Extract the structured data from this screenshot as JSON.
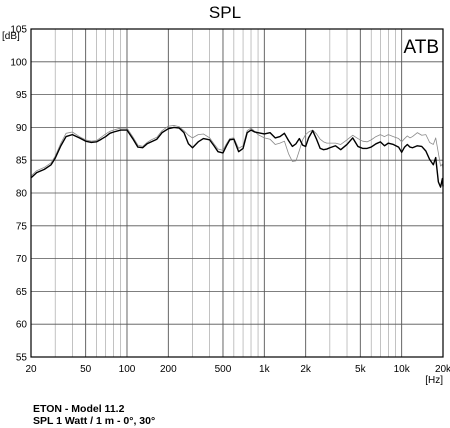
{
  "chart_data": {
    "type": "line",
    "title": "SPL",
    "ylabel": "[dB]",
    "xlabel": "[Hz]",
    "x_scale": "log",
    "xlim": [
      20,
      20000
    ],
    "ylim": [
      55,
      105
    ],
    "grid": true,
    "annotation": "ATB",
    "x_ticks": [
      {
        "value": 20,
        "label": "20"
      },
      {
        "value": 50,
        "label": "50"
      },
      {
        "value": 100,
        "label": "100"
      },
      {
        "value": 200,
        "label": "200"
      },
      {
        "value": 500,
        "label": "500"
      },
      {
        "value": 1000,
        "label": "1k"
      },
      {
        "value": 2000,
        "label": "2k"
      },
      {
        "value": 5000,
        "label": "5k"
      },
      {
        "value": 10000,
        "label": "10k"
      },
      {
        "value": 20000,
        "label": "20k"
      }
    ],
    "y_ticks": [
      55,
      60,
      65,
      70,
      75,
      80,
      85,
      90,
      95,
      100,
      105
    ],
    "series": [
      {
        "color": "#000000",
        "points": [
          [
            20,
            82.3
          ],
          [
            22,
            83.1
          ],
          [
            25,
            83.6
          ],
          [
            28,
            84.3
          ],
          [
            30,
            85.3
          ],
          [
            33,
            87.2
          ],
          [
            36,
            88.6
          ],
          [
            40,
            88.9
          ],
          [
            45,
            88.4
          ],
          [
            50,
            87.9
          ],
          [
            55,
            87.7
          ],
          [
            60,
            87.8
          ],
          [
            65,
            88.2
          ],
          [
            70,
            88.6
          ],
          [
            75,
            89.1
          ],
          [
            80,
            89.3
          ],
          [
            90,
            89.6
          ],
          [
            100,
            89.6
          ],
          [
            110,
            88.3
          ],
          [
            120,
            87.0
          ],
          [
            130,
            86.9
          ],
          [
            140,
            87.5
          ],
          [
            150,
            87.8
          ],
          [
            165,
            88.2
          ],
          [
            180,
            89.2
          ],
          [
            200,
            89.8
          ],
          [
            220,
            90.0
          ],
          [
            240,
            89.9
          ],
          [
            260,
            89.2
          ],
          [
            280,
            87.5
          ],
          [
            300,
            86.9
          ],
          [
            330,
            87.8
          ],
          [
            360,
            88.3
          ],
          [
            400,
            88.1
          ],
          [
            430,
            87.2
          ],
          [
            460,
            86.3
          ],
          [
            500,
            86.1
          ],
          [
            530,
            87.2
          ],
          [
            560,
            88.1
          ],
          [
            600,
            88.2
          ],
          [
            650,
            86.3
          ],
          [
            700,
            86.8
          ],
          [
            750,
            89.2
          ],
          [
            800,
            89.6
          ],
          [
            850,
            89.3
          ],
          [
            900,
            89.2
          ],
          [
            1000,
            89.0
          ],
          [
            1100,
            89.2
          ],
          [
            1200,
            88.4
          ],
          [
            1300,
            88.6
          ],
          [
            1400,
            89.1
          ],
          [
            1500,
            88.0
          ],
          [
            1600,
            87.1
          ],
          [
            1700,
            87.5
          ],
          [
            1800,
            88.3
          ],
          [
            1900,
            87.3
          ],
          [
            2000,
            87.1
          ],
          [
            2100,
            88.4
          ],
          [
            2250,
            89.5
          ],
          [
            2400,
            88.2
          ],
          [
            2550,
            86.8
          ],
          [
            2700,
            86.6
          ],
          [
            2850,
            86.7
          ],
          [
            3000,
            86.9
          ],
          [
            3300,
            87.2
          ],
          [
            3600,
            86.6
          ],
          [
            4000,
            87.4
          ],
          [
            4400,
            88.4
          ],
          [
            4800,
            87.1
          ],
          [
            5200,
            86.8
          ],
          [
            5600,
            86.8
          ],
          [
            6000,
            87.0
          ],
          [
            6500,
            87.5
          ],
          [
            7000,
            87.8
          ],
          [
            7500,
            87.2
          ],
          [
            8000,
            87.6
          ],
          [
            8700,
            87.4
          ],
          [
            9500,
            87.0
          ],
          [
            10000,
            86.2
          ],
          [
            10500,
            87.0
          ],
          [
            11000,
            87.4
          ],
          [
            11500,
            87.0
          ],
          [
            12000,
            86.9
          ],
          [
            13000,
            87.2
          ],
          [
            14000,
            87.1
          ],
          [
            15000,
            86.4
          ],
          [
            16000,
            85.1
          ],
          [
            17000,
            84.3
          ],
          [
            17700,
            85.4
          ],
          [
            18500,
            81.7
          ],
          [
            19200,
            80.9
          ],
          [
            19800,
            82.2
          ],
          [
            20000,
            81.0
          ]
        ]
      },
      {
        "color": "#8a8a8a",
        "points": [
          [
            20,
            82.6
          ],
          [
            22,
            83.4
          ],
          [
            25,
            83.9
          ],
          [
            28,
            84.6
          ],
          [
            30,
            85.6
          ],
          [
            33,
            87.6
          ],
          [
            36,
            89.1
          ],
          [
            40,
            89.3
          ],
          [
            45,
            88.6
          ],
          [
            50,
            88.1
          ],
          [
            55,
            87.9
          ],
          [
            60,
            88.0
          ],
          [
            65,
            88.5
          ],
          [
            70,
            89.0
          ],
          [
            75,
            89.4
          ],
          [
            80,
            89.6
          ],
          [
            90,
            89.9
          ],
          [
            100,
            89.9
          ],
          [
            110,
            88.6
          ],
          [
            120,
            87.3
          ],
          [
            130,
            87.1
          ],
          [
            140,
            87.7
          ],
          [
            150,
            88.1
          ],
          [
            165,
            88.5
          ],
          [
            180,
            89.5
          ],
          [
            200,
            90.2
          ],
          [
            220,
            90.3
          ],
          [
            240,
            90.1
          ],
          [
            260,
            89.5
          ],
          [
            280,
            88.8
          ],
          [
            300,
            88.4
          ],
          [
            330,
            88.9
          ],
          [
            360,
            89.0
          ],
          [
            400,
            88.4
          ],
          [
            430,
            87.5
          ],
          [
            460,
            86.7
          ],
          [
            500,
            86.5
          ],
          [
            530,
            87.5
          ],
          [
            560,
            88.3
          ],
          [
            600,
            88.4
          ],
          [
            650,
            86.8
          ],
          [
            700,
            87.2
          ],
          [
            750,
            89.5
          ],
          [
            800,
            89.9
          ],
          [
            850,
            89.4
          ],
          [
            900,
            88.9
          ],
          [
            1000,
            88.4
          ],
          [
            1100,
            88.2
          ],
          [
            1200,
            87.4
          ],
          [
            1300,
            87.6
          ],
          [
            1400,
            87.9
          ],
          [
            1500,
            86.0
          ],
          [
            1600,
            84.8
          ],
          [
            1700,
            84.9
          ],
          [
            1800,
            86.5
          ],
          [
            1900,
            88.1
          ],
          [
            2000,
            88.9
          ],
          [
            2100,
            89.3
          ],
          [
            2250,
            89.6
          ],
          [
            2400,
            89.0
          ],
          [
            2550,
            88.2
          ],
          [
            2700,
            87.8
          ],
          [
            2850,
            87.6
          ],
          [
            3000,
            87.6
          ],
          [
            3300,
            87.6
          ],
          [
            3600,
            87.4
          ],
          [
            4000,
            88.1
          ],
          [
            4400,
            88.8
          ],
          [
            4800,
            88.3
          ],
          [
            5200,
            87.9
          ],
          [
            5600,
            87.8
          ],
          [
            6000,
            88.1
          ],
          [
            6500,
            88.6
          ],
          [
            7000,
            88.9
          ],
          [
            7500,
            88.6
          ],
          [
            8000,
            88.9
          ],
          [
            8700,
            88.6
          ],
          [
            9500,
            88.3
          ],
          [
            10000,
            87.8
          ],
          [
            10500,
            88.3
          ],
          [
            11000,
            88.7
          ],
          [
            11500,
            88.4
          ],
          [
            12000,
            88.6
          ],
          [
            13000,
            89.2
          ],
          [
            14000,
            88.8
          ],
          [
            15000,
            88.9
          ],
          [
            16000,
            87.7
          ],
          [
            17000,
            87.4
          ],
          [
            17700,
            88.4
          ],
          [
            18500,
            86.1
          ],
          [
            19200,
            84.1
          ],
          [
            19800,
            84.4
          ],
          [
            20000,
            83.6
          ]
        ]
      }
    ]
  },
  "caption": {
    "line1": "ETON - Model 11.2",
    "line2": "SPL 1 Watt / 1 m  -  0°, 30°"
  }
}
